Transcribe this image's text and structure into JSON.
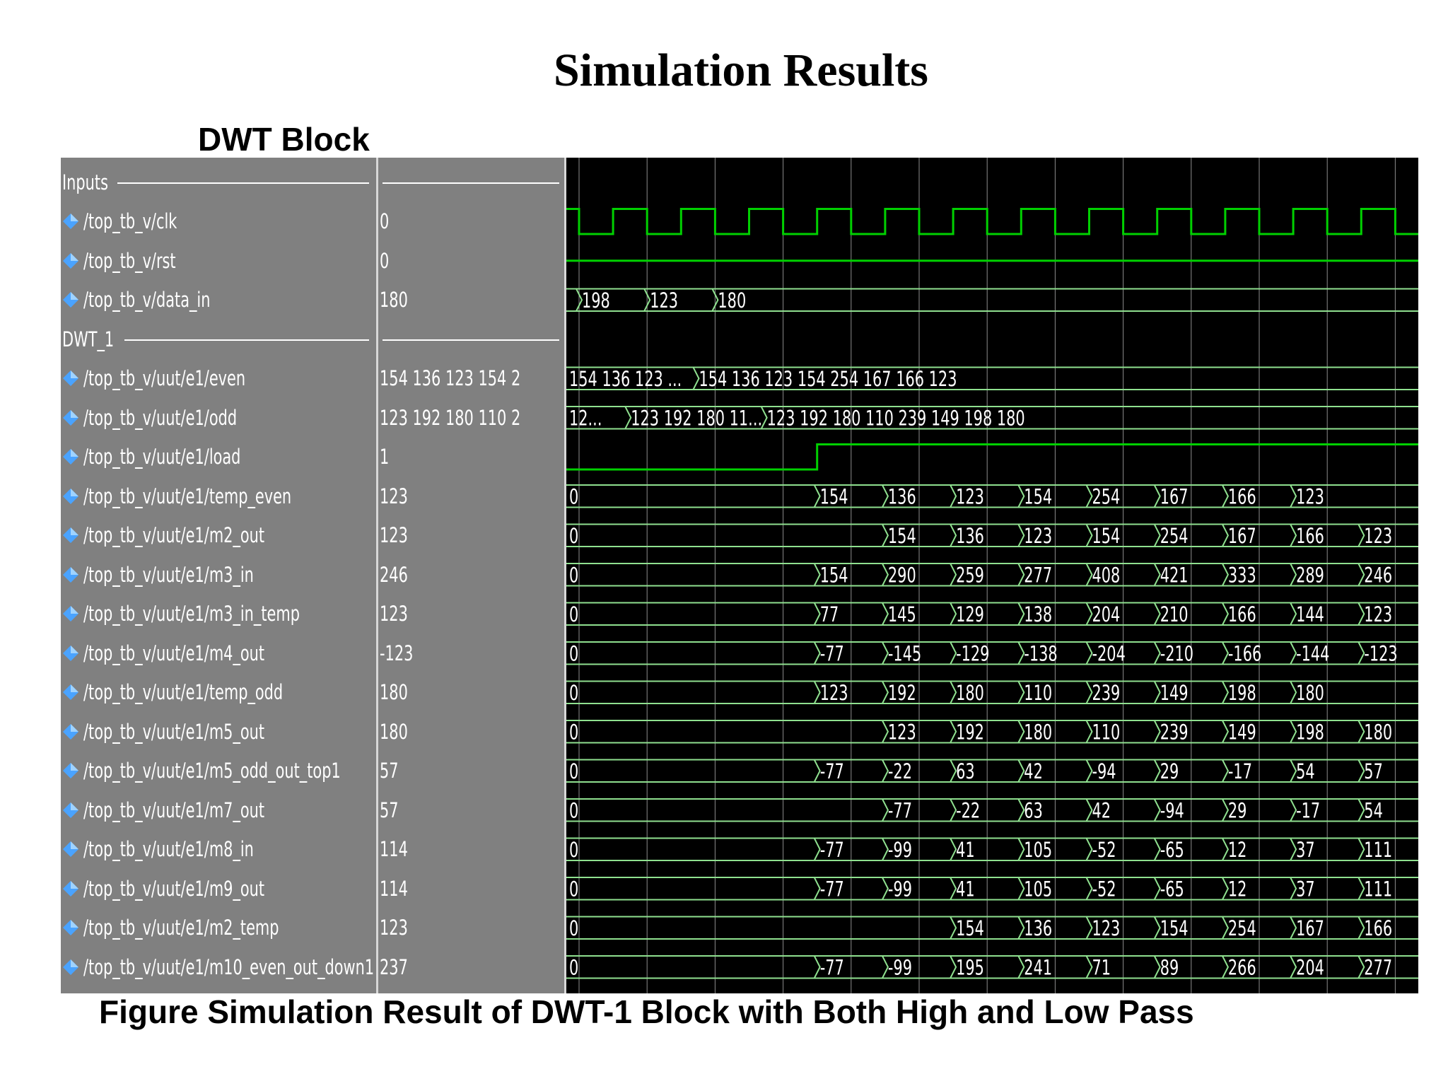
{
  "title": "Simulation Results",
  "block_title": "DWT Block",
  "caption": "Figure  Simulation Result of DWT-1 Block with Both High and Low Pass",
  "colors": {
    "wave_bg": "#000000",
    "wave_line": "#00d000",
    "bus_line": "#8fe08f",
    "panel": "#808080",
    "grid": "#ffffff",
    "icon": "#4aa3ff"
  },
  "icon": "signal-diamond-icon",
  "wave_cycles": 13,
  "groups": [
    {
      "label": "Inputs"
    },
    {
      "label": "DWT_1"
    }
  ],
  "signals": [
    {
      "name": "/top_tb_v/clk",
      "value": "0"
    },
    {
      "name": "/top_tb_v/rst",
      "value": "0"
    },
    {
      "name": "/top_tb_v/data_in",
      "value": "180"
    },
    {
      "name": "/top_tb_v/uut/e1/even",
      "value": "154 136 123 154 2"
    },
    {
      "name": "/top_tb_v/uut/e1/odd",
      "value": "123 192 180 110 2"
    },
    {
      "name": "/top_tb_v/uut/e1/load",
      "value": "1"
    },
    {
      "name": "/top_tb_v/uut/e1/temp_even",
      "value": "123"
    },
    {
      "name": "/top_tb_v/uut/e1/m2_out",
      "value": "123"
    },
    {
      "name": "/top_tb_v/uut/e1/m3_in",
      "value": "246"
    },
    {
      "name": "/top_tb_v/uut/e1/m3_in_temp",
      "value": "123"
    },
    {
      "name": "/top_tb_v/uut/e1/m4_out",
      "value": "-123"
    },
    {
      "name": "/top_tb_v/uut/e1/temp_odd",
      "value": "180"
    },
    {
      "name": "/top_tb_v/uut/e1/m5_out",
      "value": "180"
    },
    {
      "name": "/top_tb_v/uut/e1/m5_odd_out_top1",
      "value": "57"
    },
    {
      "name": "/top_tb_v/uut/e1/m7_out",
      "value": "57"
    },
    {
      "name": "/top_tb_v/uut/e1/m8_in",
      "value": "114"
    },
    {
      "name": "/top_tb_v/uut/e1/m9_out",
      "value": "114"
    },
    {
      "name": "/top_tb_v/uut/e1/m2_temp",
      "value": "123"
    },
    {
      "name": "/top_tb_v/uut/e1/m10_even_out_down1",
      "value": "237"
    }
  ],
  "waves": [
    {
      "kind": "clock"
    },
    {
      "kind": "flat"
    },
    {
      "kind": "bus",
      "seg": [
        [
          0,
          "198"
        ],
        [
          1,
          "123"
        ],
        [
          2,
          "180"
        ]
      ]
    },
    {
      "kind": "bus",
      "seg": [
        [
          -0.2,
          "154 136 123 ..."
        ],
        [
          1.72,
          "154 136 123 154 254 167 166 123"
        ]
      ]
    },
    {
      "kind": "bus",
      "seg": [
        [
          -0.2,
          "12..."
        ],
        [
          0.72,
          "123 192 180 11..."
        ],
        [
          2.72,
          "123 192 180 110 239 149 198 180"
        ]
      ]
    },
    {
      "kind": "load",
      "rise": 3.5
    },
    {
      "kind": "bus",
      "seg": [
        [
          -0.2,
          "0"
        ],
        [
          3.5,
          "154"
        ],
        [
          4.5,
          "136"
        ],
        [
          5.5,
          "123"
        ],
        [
          6.5,
          "154"
        ],
        [
          7.5,
          "254"
        ],
        [
          8.5,
          "167"
        ],
        [
          9.5,
          "166"
        ],
        [
          10.5,
          "123"
        ]
      ]
    },
    {
      "kind": "bus",
      "seg": [
        [
          -0.2,
          "0"
        ],
        [
          4.5,
          "154"
        ],
        [
          5.5,
          "136"
        ],
        [
          6.5,
          "123"
        ],
        [
          7.5,
          "154"
        ],
        [
          8.5,
          "254"
        ],
        [
          9.5,
          "167"
        ],
        [
          10.5,
          "166"
        ],
        [
          11.5,
          "123"
        ]
      ]
    },
    {
      "kind": "bus",
      "seg": [
        [
          -0.2,
          "0"
        ],
        [
          3.5,
          "154"
        ],
        [
          4.5,
          "290"
        ],
        [
          5.5,
          "259"
        ],
        [
          6.5,
          "277"
        ],
        [
          7.5,
          "408"
        ],
        [
          8.5,
          "421"
        ],
        [
          9.5,
          "333"
        ],
        [
          10.5,
          "289"
        ],
        [
          11.5,
          "246"
        ]
      ]
    },
    {
      "kind": "bus",
      "seg": [
        [
          -0.2,
          "0"
        ],
        [
          3.5,
          "77"
        ],
        [
          4.5,
          "145"
        ],
        [
          5.5,
          "129"
        ],
        [
          6.5,
          "138"
        ],
        [
          7.5,
          "204"
        ],
        [
          8.5,
          "210"
        ],
        [
          9.5,
          "166"
        ],
        [
          10.5,
          "144"
        ],
        [
          11.5,
          "123"
        ]
      ]
    },
    {
      "kind": "bus",
      "seg": [
        [
          -0.2,
          "0"
        ],
        [
          3.5,
          "-77"
        ],
        [
          4.5,
          "-145"
        ],
        [
          5.5,
          "-129"
        ],
        [
          6.5,
          "-138"
        ],
        [
          7.5,
          "-204"
        ],
        [
          8.5,
          "-210"
        ],
        [
          9.5,
          "-166"
        ],
        [
          10.5,
          "-144"
        ],
        [
          11.5,
          "-123"
        ]
      ]
    },
    {
      "kind": "bus",
      "seg": [
        [
          -0.2,
          "0"
        ],
        [
          3.5,
          "123"
        ],
        [
          4.5,
          "192"
        ],
        [
          5.5,
          "180"
        ],
        [
          6.5,
          "110"
        ],
        [
          7.5,
          "239"
        ],
        [
          8.5,
          "149"
        ],
        [
          9.5,
          "198"
        ],
        [
          10.5,
          "180"
        ]
      ]
    },
    {
      "kind": "bus",
      "seg": [
        [
          -0.2,
          "0"
        ],
        [
          4.5,
          "123"
        ],
        [
          5.5,
          "192"
        ],
        [
          6.5,
          "180"
        ],
        [
          7.5,
          "110"
        ],
        [
          8.5,
          "239"
        ],
        [
          9.5,
          "149"
        ],
        [
          10.5,
          "198"
        ],
        [
          11.5,
          "180"
        ]
      ]
    },
    {
      "kind": "bus",
      "seg": [
        [
          -0.2,
          "0"
        ],
        [
          3.5,
          "-77"
        ],
        [
          4.5,
          "-22"
        ],
        [
          5.5,
          "63"
        ],
        [
          6.5,
          "42"
        ],
        [
          7.5,
          "-94"
        ],
        [
          8.5,
          "29"
        ],
        [
          9.5,
          "-17"
        ],
        [
          10.5,
          "54"
        ],
        [
          11.5,
          "57"
        ]
      ]
    },
    {
      "kind": "bus",
      "seg": [
        [
          -0.2,
          "0"
        ],
        [
          4.5,
          "-77"
        ],
        [
          5.5,
          "-22"
        ],
        [
          6.5,
          "63"
        ],
        [
          7.5,
          "42"
        ],
        [
          8.5,
          "-94"
        ],
        [
          9.5,
          "29"
        ],
        [
          10.5,
          "-17"
        ],
        [
          11.5,
          "54"
        ],
        [
          12.5,
          "57"
        ]
      ]
    },
    {
      "kind": "bus",
      "seg": [
        [
          -0.2,
          "0"
        ],
        [
          3.5,
          "-77"
        ],
        [
          4.5,
          "-99"
        ],
        [
          5.5,
          "41"
        ],
        [
          6.5,
          "105"
        ],
        [
          7.5,
          "-52"
        ],
        [
          8.5,
          "-65"
        ],
        [
          9.5,
          "12"
        ],
        [
          10.5,
          "37"
        ],
        [
          11.5,
          "111"
        ],
        [
          12.5,
          "114"
        ]
      ]
    },
    {
      "kind": "bus",
      "seg": [
        [
          -0.2,
          "0"
        ],
        [
          3.5,
          "-77"
        ],
        [
          4.5,
          "-99"
        ],
        [
          5.5,
          "41"
        ],
        [
          6.5,
          "105"
        ],
        [
          7.5,
          "-52"
        ],
        [
          8.5,
          "-65"
        ],
        [
          9.5,
          "12"
        ],
        [
          10.5,
          "37"
        ],
        [
          11.5,
          "111"
        ],
        [
          12.5,
          "114"
        ]
      ]
    },
    {
      "kind": "bus",
      "seg": [
        [
          -0.2,
          "0"
        ],
        [
          5.5,
          "154"
        ],
        [
          6.5,
          "136"
        ],
        [
          7.5,
          "123"
        ],
        [
          8.5,
          "154"
        ],
        [
          9.5,
          "254"
        ],
        [
          10.5,
          "167"
        ],
        [
          11.5,
          "166"
        ],
        [
          12.5,
          "123"
        ]
      ]
    },
    {
      "kind": "bus",
      "seg": [
        [
          -0.2,
          "0"
        ],
        [
          3.5,
          "-77"
        ],
        [
          4.5,
          "-99"
        ],
        [
          5.5,
          "195"
        ],
        [
          6.5,
          "241"
        ],
        [
          7.5,
          "71"
        ],
        [
          8.5,
          "89"
        ],
        [
          9.5,
          "266"
        ],
        [
          10.5,
          "204"
        ],
        [
          11.5,
          "277"
        ],
        [
          12.5,
          "237"
        ]
      ]
    }
  ]
}
